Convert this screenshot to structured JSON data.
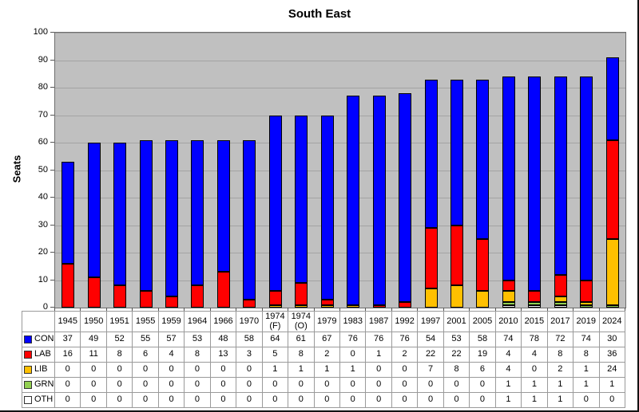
{
  "chart_data": {
    "type": "bar",
    "stacked": true,
    "title": "South East",
    "ylabel": "Seats",
    "ylim": [
      0,
      100
    ],
    "ytick_step": 10,
    "grid": true,
    "plot_bg": "#c0c0c0",
    "grid_color": "#a3a3a3",
    "bar_outline": "#000000",
    "categories": [
      "1945",
      "1950",
      "1951",
      "1955",
      "1959",
      "1964",
      "1966",
      "1970",
      "1974 (F)",
      "1974 (O)",
      "1979",
      "1983",
      "1987",
      "1992",
      "1997",
      "2001",
      "2005",
      "2010",
      "2015",
      "2017",
      "2019",
      "2024"
    ],
    "series": [
      {
        "name": "CON",
        "color": "#0000ff",
        "values": [
          37,
          49,
          52,
          55,
          57,
          53,
          48,
          58,
          64,
          61,
          67,
          76,
          76,
          76,
          54,
          53,
          58,
          74,
          78,
          72,
          74,
          30
        ]
      },
      {
        "name": "LAB",
        "color": "#ff0000",
        "values": [
          16,
          11,
          8,
          6,
          4,
          8,
          13,
          3,
          5,
          8,
          2,
          0,
          1,
          2,
          22,
          22,
          19,
          4,
          4,
          8,
          8,
          36
        ]
      },
      {
        "name": "LIB",
        "color": "#ffc000",
        "values": [
          0,
          0,
          0,
          0,
          0,
          0,
          0,
          0,
          1,
          1,
          1,
          1,
          0,
          0,
          7,
          8,
          6,
          4,
          0,
          2,
          1,
          24
        ]
      },
      {
        "name": "GRN",
        "color": "#92d050",
        "values": [
          0,
          0,
          0,
          0,
          0,
          0,
          0,
          0,
          0,
          0,
          0,
          0,
          0,
          0,
          0,
          0,
          0,
          1,
          1,
          1,
          1,
          1
        ]
      },
      {
        "name": "OTH",
        "color": "#ffffff",
        "values": [
          0,
          0,
          0,
          0,
          0,
          0,
          0,
          0,
          0,
          0,
          0,
          0,
          0,
          0,
          0,
          0,
          0,
          1,
          1,
          1,
          0,
          0
        ]
      }
    ],
    "stack_order_bottom_to_top": [
      "OTH",
      "GRN",
      "LIB",
      "LAB",
      "CON"
    ],
    "legend_position": "table-left-column"
  }
}
